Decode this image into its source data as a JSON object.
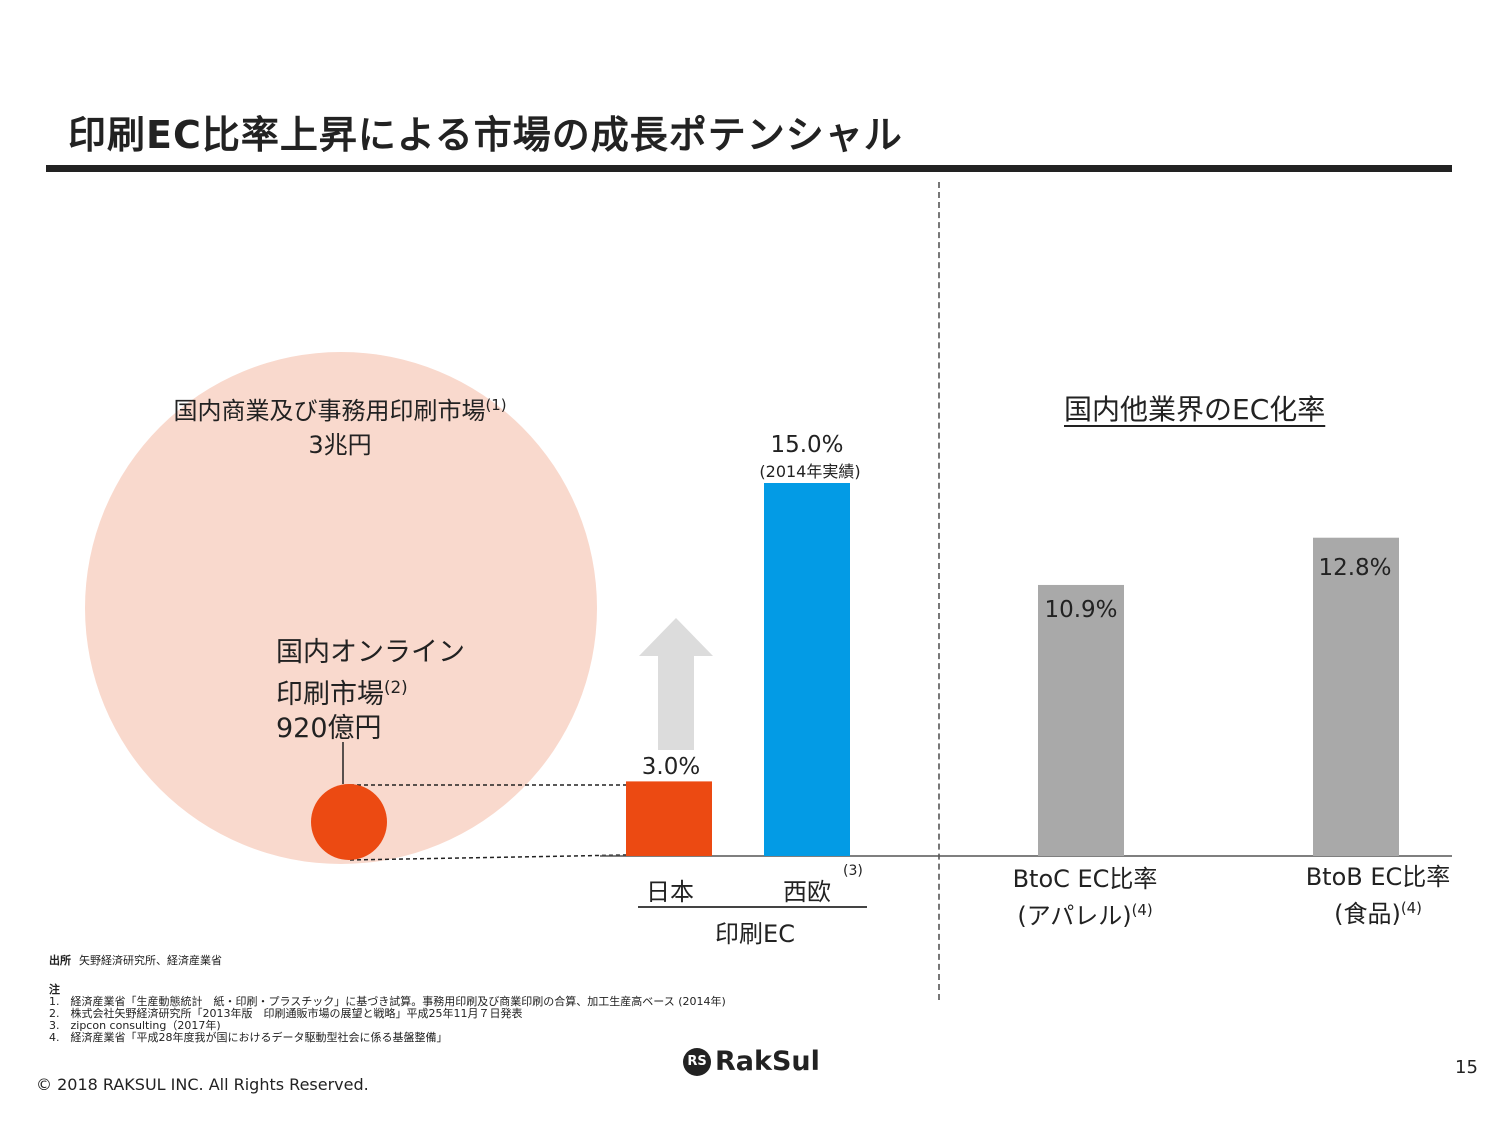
{
  "slide": {
    "title": "印刷EC比率上昇による市場の成長ポテンシャル",
    "page_number": "15",
    "copyright": "© 2018 RAKSUL INC. All Rights Reserved.",
    "logo_text": "RakSul"
  },
  "market_circles": {
    "total": {
      "label": "国内商業及び事務用印刷市場",
      "ref": "(1)",
      "value": "3兆円",
      "color": "#f9d9cd"
    },
    "online": {
      "label_line1": "国内オンライン",
      "label_line2": "印刷市場",
      "ref": "(2)",
      "value": "920億円",
      "color": "#ec4a12"
    }
  },
  "chart_data": {
    "type": "bar",
    "ylim": [
      0,
      16
    ],
    "grid": false,
    "categories": [
      "日本",
      "西欧",
      "BtoC EC比率 (アパレル)",
      "BtoB EC比率 (食品)"
    ],
    "values": [
      3.0,
      15.0,
      10.9,
      12.8
    ],
    "value_labels": [
      "3.0%",
      "15.0%",
      "10.9%",
      "12.8%"
    ],
    "colors": [
      "#ec4a12",
      "#039be5",
      "#a9a9a9",
      "#a9a9a9"
    ],
    "annotations": {
      "western_europe_note": "(2014年実績)",
      "western_europe_ref": "(3)",
      "growth_arrow": "up-arrow-icon"
    },
    "groups": {
      "print_ec": "印刷EC",
      "other_industries": "国内他業界のEC化率"
    },
    "category_labels": {
      "japan": "日本",
      "europe": "西欧",
      "btoc_line1": "BtoC EC比率",
      "btoc_line2": "(アパレル)",
      "btoc_ref": "(4)",
      "btob_line1": "BtoB EC比率",
      "btob_line2": "(食品)",
      "btob_ref": "(4)"
    }
  },
  "footnotes": {
    "source_head": "出所",
    "source_text": "矢野経済研究所、経済産業省",
    "notes_head": "注",
    "notes": [
      "1.　経済産業省「生産動態統計　紙・印刷・プラスチック」に基づき試算。事務用印刷及び商業印刷の合算、加工生産高ベース (2014年)",
      "2.　株式会社矢野経済研究所「2013年版　印刷通販市場の展望と戦略」平成25年11月７日発表",
      "3.　zipcon consulting（2017年)",
      "4.　経済産業省「平成28年度我が国におけるデータ駆動型社会に係る基盤整備」"
    ]
  }
}
